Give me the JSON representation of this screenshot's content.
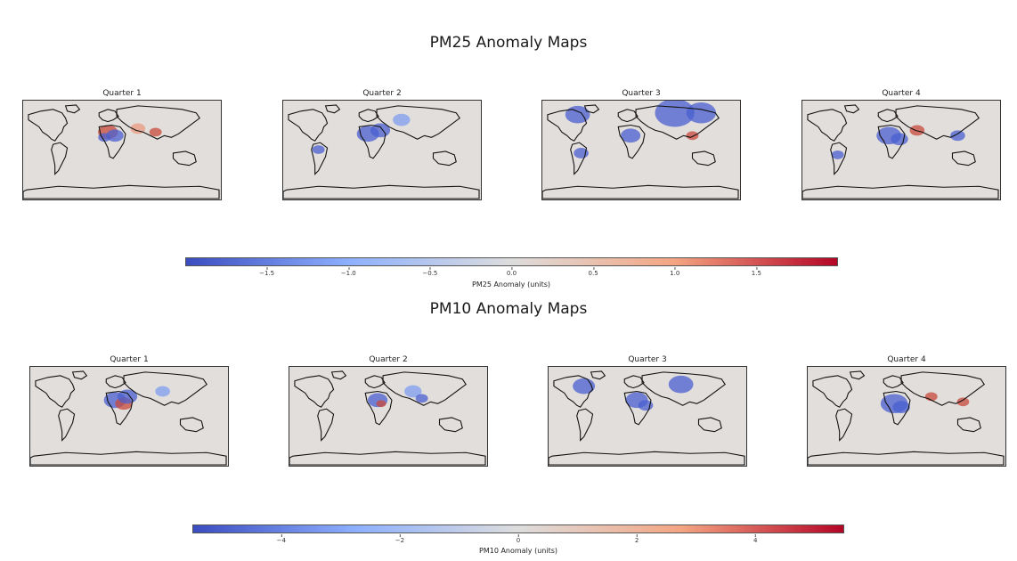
{
  "pm25": {
    "title": "PM25 Anomaly Maps",
    "quarters": [
      "Quarter 1",
      "Quarter 2",
      "Quarter 3",
      "Quarter 4"
    ],
    "colorbar": {
      "label": "PM25 Anomaly (units)",
      "min": -2.0,
      "max": 2.0,
      "ticks": [
        "−1.5",
        "−1.0",
        "−0.5",
        "0.0",
        "0.5",
        "1.0",
        "1.5"
      ],
      "tick_values": [
        -1.5,
        -1.0,
        -0.5,
        0.0,
        0.5,
        1.0,
        1.5
      ]
    }
  },
  "pm10": {
    "title": "PM10 Anomaly Maps",
    "quarters": [
      "Quarter 1",
      "Quarter 2",
      "Quarter 3",
      "Quarter 4"
    ],
    "colorbar": {
      "label": "PM10 Anomaly (units)",
      "min": -5.5,
      "max": 5.5,
      "ticks": [
        "−4",
        "−2",
        "0",
        "2",
        "4"
      ],
      "tick_values": [
        -4,
        -2,
        0,
        2,
        4
      ]
    }
  },
  "colors": {
    "negative": "#3b4cc0",
    "neutral": "#dddddd",
    "positive": "#b40426",
    "land_bg": "#d8d8d8"
  }
}
